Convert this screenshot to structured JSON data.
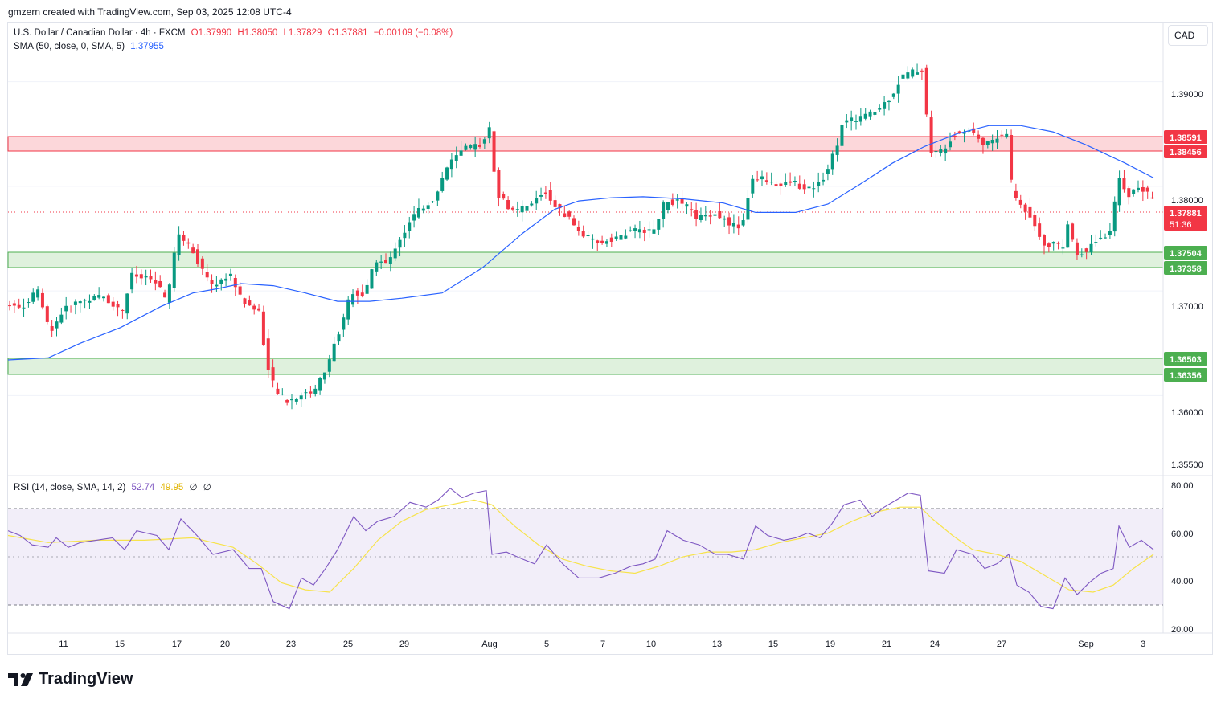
{
  "header": {
    "text": "gmzern created with TradingView.com, Sep 03, 2025 12:08 UTC-4"
  },
  "symbol": {
    "name": "U.S. Dollar / Canadian Dollar · 4h · FXCM",
    "open": "O1.37990",
    "high": "H1.38050",
    "low": "L1.37829",
    "close": "C1.37881",
    "change": "−0.00109 (−0.08%)"
  },
  "sma": {
    "label": "SMA (50, close, 0, SMA, 5)",
    "value": "1.37955"
  },
  "rsi": {
    "label": "RSI (14, close, SMA, 14, 2)",
    "value": "52.74",
    "sma_value": "49.95",
    "extra1": "∅",
    "extra2": "∅"
  },
  "currency_button": "CAD",
  "price_axis": {
    "ticks": [
      "1.39000",
      "1.38000",
      "1.37000",
      "1.36000",
      "1.35500"
    ]
  },
  "rsi_axis": {
    "ticks": [
      "80.00",
      "60.00",
      "40.00",
      "20.00"
    ]
  },
  "badges": {
    "resistance_top": "1.38591",
    "resistance_bottom": "1.38456",
    "last_price": "1.37881",
    "countdown": "51:36",
    "support1_top": "1.37504",
    "support1_bottom": "1.37358",
    "support2_top": "1.36503",
    "support2_bottom": "1.36356"
  },
  "time_axis": {
    "labels": [
      "11",
      "15",
      "17",
      "20",
      "23",
      "25",
      "29",
      "Aug",
      "5",
      "7",
      "10",
      "13",
      "15",
      "19",
      "21",
      "24",
      "27",
      "Sep",
      "3"
    ]
  },
  "colors": {
    "up": "#089981",
    "down": "#f23645",
    "sma": "#2962ff",
    "rsi": "#7e57c2",
    "rsi_sma": "#f7e34b",
    "resistance_zone": "#fcd7da",
    "support_zone": "#dff1dd"
  },
  "logo": {
    "text": "TradingView"
  },
  "chart_data": {
    "type": "candlestick",
    "title": "U.S. Dollar / Canadian Dollar · 4h · FXCM",
    "price_range": [
      1.3525,
      1.3955
    ],
    "levels": {
      "resistance": [
        1.38456,
        1.38591
      ],
      "support_upper": [
        1.37358,
        1.37504
      ],
      "support_lower": [
        1.36356,
        1.36503
      ],
      "last": 1.37881
    },
    "price_path": [
      [
        0,
        1.369
      ],
      [
        30,
        1.3685
      ],
      [
        50,
        1.37
      ],
      [
        65,
        1.366
      ],
      [
        80,
        1.368
      ],
      [
        100,
        1.369
      ],
      [
        130,
        1.3695
      ],
      [
        155,
        1.368
      ],
      [
        165,
        1.3715
      ],
      [
        195,
        1.371
      ],
      [
        210,
        1.369
      ],
      [
        225,
        1.3755
      ],
      [
        245,
        1.3735
      ],
      [
        265,
        1.3705
      ],
      [
        290,
        1.3715
      ],
      [
        305,
        1.369
      ],
      [
        325,
        1.368
      ],
      [
        337,
        1.362
      ],
      [
        345,
        1.3605
      ],
      [
        360,
        1.3595
      ],
      [
        375,
        1.36
      ],
      [
        395,
        1.3605
      ],
      [
        410,
        1.363
      ],
      [
        425,
        1.366
      ],
      [
        440,
        1.37
      ],
      [
        455,
        1.3695
      ],
      [
        470,
        1.373
      ],
      [
        485,
        1.3725
      ],
      [
        500,
        1.375
      ],
      [
        520,
        1.3775
      ],
      [
        545,
        1.379
      ],
      [
        560,
        1.382
      ],
      [
        580,
        1.3835
      ],
      [
        600,
        1.384
      ],
      [
        612,
        1.3855
      ],
      [
        620,
        1.3795
      ],
      [
        640,
        1.3775
      ],
      [
        660,
        1.378
      ],
      [
        680,
        1.3795
      ],
      [
        695,
        1.378
      ],
      [
        710,
        1.377
      ],
      [
        725,
        1.3755
      ],
      [
        745,
        1.3745
      ],
      [
        765,
        1.375
      ],
      [
        785,
        1.3755
      ],
      [
        800,
        1.376
      ],
      [
        815,
        1.3755
      ],
      [
        830,
        1.3785
      ],
      [
        850,
        1.3785
      ],
      [
        870,
        1.377
      ],
      [
        890,
        1.3775
      ],
      [
        910,
        1.3765
      ],
      [
        925,
        1.376
      ],
      [
        940,
        1.381
      ],
      [
        960,
        1.3805
      ],
      [
        975,
        1.38
      ],
      [
        990,
        1.3805
      ],
      [
        1005,
        1.3795
      ],
      [
        1025,
        1.3805
      ],
      [
        1040,
        1.383
      ],
      [
        1050,
        1.386
      ],
      [
        1070,
        1.3865
      ],
      [
        1090,
        1.387
      ],
      [
        1110,
        1.3885
      ],
      [
        1125,
        1.3905
      ],
      [
        1140,
        1.391
      ],
      [
        1153,
        1.3912
      ],
      [
        1158,
        1.383
      ],
      [
        1175,
        1.3835
      ],
      [
        1190,
        1.385
      ],
      [
        1210,
        1.3855
      ],
      [
        1225,
        1.384
      ],
      [
        1240,
        1.3845
      ],
      [
        1255,
        1.385
      ],
      [
        1262,
        1.3795
      ],
      [
        1275,
        1.378
      ],
      [
        1290,
        1.3765
      ],
      [
        1300,
        1.3745
      ],
      [
        1315,
        1.3745
      ],
      [
        1325,
        1.374
      ],
      [
        1330,
        1.377
      ],
      [
        1340,
        1.3735
      ],
      [
        1355,
        1.374
      ],
      [
        1370,
        1.375
      ],
      [
        1385,
        1.3755
      ],
      [
        1395,
        1.381
      ],
      [
        1405,
        1.379
      ],
      [
        1420,
        1.38
      ],
      [
        1435,
        1.3788
      ]
    ],
    "sma_path": [
      [
        10,
        1.3634
      ],
      [
        60,
        1.3636
      ],
      [
        100,
        1.365
      ],
      [
        150,
        1.3665
      ],
      [
        200,
        1.3685
      ],
      [
        240,
        1.3698
      ],
      [
        270,
        1.3702
      ],
      [
        300,
        1.3707
      ],
      [
        340,
        1.3705
      ],
      [
        380,
        1.3698
      ],
      [
        420,
        1.369
      ],
      [
        460,
        1.369
      ],
      [
        500,
        1.3693
      ],
      [
        550,
        1.3698
      ],
      [
        600,
        1.3722
      ],
      [
        650,
        1.3755
      ],
      [
        690,
        1.3778
      ],
      [
        720,
        1.3786
      ],
      [
        760,
        1.3789
      ],
      [
        800,
        1.379
      ],
      [
        850,
        1.3788
      ],
      [
        900,
        1.3784
      ],
      [
        940,
        1.3775
      ],
      [
        990,
        1.3775
      ],
      [
        1030,
        1.3783
      ],
      [
        1070,
        1.3802
      ],
      [
        1110,
        1.3822
      ],
      [
        1150,
        1.3838
      ],
      [
        1190,
        1.385
      ],
      [
        1230,
        1.3858
      ],
      [
        1270,
        1.3858
      ],
      [
        1310,
        1.3852
      ],
      [
        1350,
        1.384
      ],
      [
        1400,
        1.3822
      ],
      [
        1435,
        1.3808
      ]
    ],
    "rsi_range": [
      17,
      83
    ],
    "rsi_bands": [
      30,
      50,
      70
    ],
    "rsi_path": [
      [
        10,
        60
      ],
      [
        25,
        58
      ],
      [
        40,
        54
      ],
      [
        60,
        53
      ],
      [
        70,
        57
      ],
      [
        85,
        53
      ],
      [
        100,
        55
      ],
      [
        120,
        56
      ],
      [
        140,
        57
      ],
      [
        155,
        52
      ],
      [
        170,
        60
      ],
      [
        195,
        58
      ],
      [
        210,
        52
      ],
      [
        225,
        65
      ],
      [
        245,
        58
      ],
      [
        265,
        50
      ],
      [
        290,
        52
      ],
      [
        310,
        44
      ],
      [
        325,
        44
      ],
      [
        340,
        30
      ],
      [
        360,
        27
      ],
      [
        375,
        40
      ],
      [
        390,
        37
      ],
      [
        405,
        44
      ],
      [
        420,
        52
      ],
      [
        440,
        66
      ],
      [
        455,
        60
      ],
      [
        470,
        64
      ],
      [
        490,
        66
      ],
      [
        510,
        72
      ],
      [
        530,
        70
      ],
      [
        545,
        73
      ],
      [
        560,
        78
      ],
      [
        575,
        74
      ],
      [
        590,
        76
      ],
      [
        605,
        77
      ],
      [
        612,
        50
      ],
      [
        630,
        51
      ],
      [
        650,
        48
      ],
      [
        665,
        46
      ],
      [
        680,
        54
      ],
      [
        700,
        46
      ],
      [
        720,
        40
      ],
      [
        745,
        40
      ],
      [
        765,
        42
      ],
      [
        785,
        45
      ],
      [
        800,
        46
      ],
      [
        815,
        48
      ],
      [
        830,
        60
      ],
      [
        850,
        56
      ],
      [
        870,
        54
      ],
      [
        890,
        50
      ],
      [
        905,
        50
      ],
      [
        925,
        48
      ],
      [
        940,
        62
      ],
      [
        955,
        58
      ],
      [
        975,
        56
      ],
      [
        990,
        57
      ],
      [
        1005,
        59
      ],
      [
        1020,
        57
      ],
      [
        1035,
        63
      ],
      [
        1050,
        71
      ],
      [
        1070,
        73
      ],
      [
        1085,
        66
      ],
      [
        1100,
        70
      ],
      [
        1115,
        73
      ],
      [
        1130,
        76
      ],
      [
        1145,
        75
      ],
      [
        1155,
        43
      ],
      [
        1175,
        42
      ],
      [
        1190,
        52
      ],
      [
        1210,
        50
      ],
      [
        1225,
        44
      ],
      [
        1240,
        46
      ],
      [
        1255,
        50
      ],
      [
        1265,
        37
      ],
      [
        1280,
        34
      ],
      [
        1295,
        28
      ],
      [
        1310,
        27
      ],
      [
        1325,
        40
      ],
      [
        1340,
        33
      ],
      [
        1355,
        38
      ],
      [
        1370,
        42
      ],
      [
        1385,
        44
      ],
      [
        1392,
        62
      ],
      [
        1405,
        53
      ],
      [
        1420,
        56
      ],
      [
        1435,
        52
      ]
    ],
    "rsi_sma_path": [
      [
        10,
        58
      ],
      [
        60,
        55
      ],
      [
        120,
        56
      ],
      [
        180,
        56
      ],
      [
        240,
        57
      ],
      [
        290,
        53
      ],
      [
        320,
        46
      ],
      [
        350,
        38
      ],
      [
        380,
        35
      ],
      [
        410,
        34
      ],
      [
        440,
        44
      ],
      [
        470,
        56
      ],
      [
        500,
        64
      ],
      [
        530,
        69
      ],
      [
        560,
        71
      ],
      [
        590,
        73
      ],
      [
        612,
        71
      ],
      [
        640,
        62
      ],
      [
        670,
        54
      ],
      [
        700,
        48
      ],
      [
        730,
        45
      ],
      [
        760,
        43
      ],
      [
        790,
        42
      ],
      [
        820,
        45
      ],
      [
        850,
        49
      ],
      [
        880,
        51
      ],
      [
        910,
        51
      ],
      [
        940,
        52
      ],
      [
        970,
        55
      ],
      [
        1000,
        57
      ],
      [
        1030,
        59
      ],
      [
        1060,
        64
      ],
      [
        1090,
        68
      ],
      [
        1120,
        70
      ],
      [
        1145,
        70
      ],
      [
        1160,
        65
      ],
      [
        1185,
        58
      ],
      [
        1210,
        52
      ],
      [
        1240,
        50
      ],
      [
        1270,
        47
      ],
      [
        1300,
        41
      ],
      [
        1330,
        35
      ],
      [
        1360,
        34
      ],
      [
        1385,
        37
      ],
      [
        1410,
        44
      ],
      [
        1435,
        50
      ]
    ]
  }
}
